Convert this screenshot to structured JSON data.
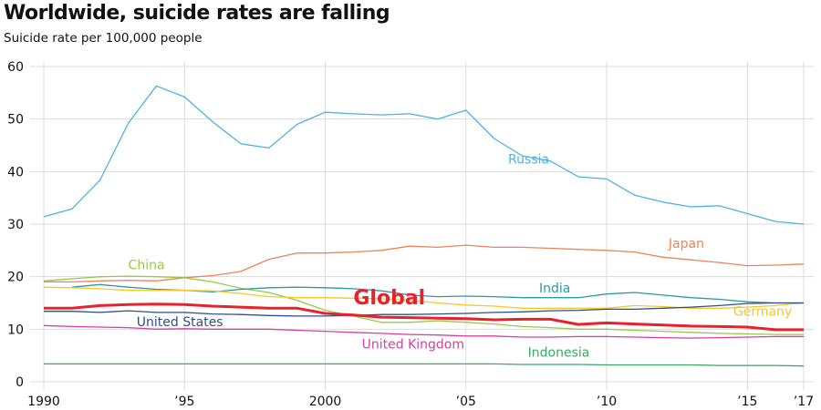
{
  "chart_data": {
    "type": "line",
    "title": "Worldwide, suicide rates are falling",
    "subtitle": "Suicide rate per 100,000 people",
    "xlabel": "",
    "ylabel": "",
    "x": [
      1990,
      1991,
      1992,
      1993,
      1994,
      1995,
      1996,
      1997,
      1998,
      1999,
      2000,
      2001,
      2002,
      2003,
      2004,
      2005,
      2006,
      2007,
      2008,
      2009,
      2010,
      2011,
      2012,
      2013,
      2014,
      2015,
      2016,
      2017
    ],
    "xlim": [
      1990,
      2017
    ],
    "ylim": [
      0,
      60
    ],
    "grid": true,
    "legend": "inline labels",
    "x_ticks": [
      {
        "value": 1990,
        "label": "1990"
      },
      {
        "value": 1995,
        "label": "’95"
      },
      {
        "value": 2000,
        "label": "2000"
      },
      {
        "value": 2005,
        "label": "’05"
      },
      {
        "value": 2010,
        "label": "’10"
      },
      {
        "value": 2015,
        "label": "’15"
      },
      {
        "value": 2017,
        "label": "’17"
      }
    ],
    "y_ticks": [
      {
        "value": 0,
        "label": "0"
      },
      {
        "value": 10,
        "label": "10"
      },
      {
        "value": 20,
        "label": "20"
      },
      {
        "value": 30,
        "label": "30"
      },
      {
        "value": 40,
        "label": "40"
      },
      {
        "value": 50,
        "label": "50"
      },
      {
        "value": 60,
        "label": "60"
      }
    ],
    "series": [
      {
        "name": "Russia",
        "color": "#4fb3e0",
        "emphasis": false,
        "values": [
          31.4,
          32.9,
          38.4,
          49.2,
          56.3,
          54.2,
          49.5,
          45.3,
          44.5,
          49.0,
          51.3,
          51.0,
          50.8,
          51.0,
          50.0,
          51.7,
          46.3,
          43.0,
          42.0,
          39.0,
          38.6,
          35.5,
          34.2,
          33.3,
          33.5,
          32.0,
          30.5,
          30.0
        ],
        "label_at": [
          2006.5,
          41.5
        ]
      },
      {
        "name": "Japan",
        "color": "#e8865a",
        "emphasis": false,
        "values": [
          19.0,
          19.0,
          19.2,
          19.3,
          19.2,
          19.8,
          20.2,
          21.0,
          23.3,
          24.5,
          24.5,
          24.7,
          25.0,
          25.8,
          25.6,
          26.0,
          25.6,
          25.6,
          25.4,
          25.2,
          25.0,
          24.7,
          23.7,
          23.2,
          22.7,
          22.1,
          22.2,
          22.4
        ],
        "label_at": [
          2012.2,
          25.5
        ]
      },
      {
        "name": "China",
        "color": "#96c94a",
        "emphasis": false,
        "values": [
          19.2,
          19.6,
          20.0,
          20.1,
          20.0,
          19.8,
          19.0,
          17.8,
          17.0,
          15.5,
          13.6,
          12.5,
          11.3,
          11.3,
          11.6,
          11.3,
          11.0,
          10.5,
          10.3,
          10.0,
          10.0,
          9.8,
          9.6,
          9.4,
          9.2,
          9.1,
          9.0,
          9.0
        ],
        "label_at": [
          1993.0,
          21.4
        ]
      },
      {
        "name": "India",
        "color": "#2a9aa5",
        "emphasis": false,
        "values": [
          null,
          18.0,
          18.5,
          18.0,
          17.6,
          17.4,
          17.1,
          17.6,
          17.9,
          18.0,
          17.9,
          17.7,
          17.3,
          16.5,
          16.2,
          16.3,
          16.2,
          16.0,
          16.0,
          16.0,
          16.7,
          17.0,
          16.5,
          16.0,
          15.7,
          15.2,
          15.0,
          15.0
        ],
        "label_at": [
          2007.6,
          17.0
        ]
      },
      {
        "name": "Germany",
        "color": "#f7c72a",
        "emphasis": false,
        "values": [
          18.0,
          17.9,
          17.7,
          17.4,
          17.4,
          17.4,
          17.3,
          16.8,
          16.2,
          16.0,
          16.0,
          15.9,
          15.8,
          15.5,
          15.0,
          14.6,
          14.4,
          14.0,
          14.0,
          14.0,
          14.0,
          14.5,
          14.3,
          14.0,
          14.0,
          14.2,
          14.5,
          15.0
        ],
        "label_at": [
          2014.5,
          12.6
        ]
      },
      {
        "name": "Global",
        "color": "#e8222c",
        "emphasis": true,
        "values": [
          14.0,
          14.0,
          14.5,
          14.7,
          14.8,
          14.7,
          14.4,
          14.2,
          14.0,
          14.0,
          13.0,
          12.7,
          12.3,
          12.2,
          12.1,
          12.0,
          11.8,
          11.9,
          11.9,
          10.9,
          11.2,
          11.0,
          10.8,
          10.6,
          10.5,
          10.4,
          9.9,
          9.9
        ],
        "label_at": [
          2001.0,
          14.7
        ]
      },
      {
        "name": "United States",
        "color": "#2f4f86",
        "emphasis": false,
        "values": [
          13.4,
          13.4,
          13.2,
          13.5,
          13.2,
          13.2,
          12.9,
          12.8,
          12.6,
          12.5,
          12.5,
          12.6,
          12.8,
          12.8,
          12.9,
          13.0,
          13.2,
          13.3,
          13.5,
          13.6,
          13.8,
          13.8,
          14.0,
          14.2,
          14.5,
          14.9,
          15.0,
          15.0
        ],
        "label_at": [
          1993.3,
          10.6
        ]
      },
      {
        "name": "United Kingdom",
        "color": "#d63ea6",
        "emphasis": false,
        "values": [
          10.7,
          10.5,
          10.4,
          10.3,
          10.0,
          10.1,
          10.0,
          10.0,
          10.0,
          9.8,
          9.6,
          9.4,
          9.2,
          9.0,
          8.9,
          8.7,
          8.7,
          8.5,
          8.5,
          8.6,
          8.6,
          8.5,
          8.4,
          8.3,
          8.4,
          8.5,
          8.6,
          8.6
        ],
        "label_at": [
          2001.3,
          6.3
        ]
      },
      {
        "name": "Indonesia",
        "color": "#3aa867",
        "emphasis": false,
        "values": [
          3.4,
          3.4,
          3.4,
          3.4,
          3.4,
          3.4,
          3.4,
          3.4,
          3.4,
          3.4,
          3.4,
          3.4,
          3.4,
          3.4,
          3.4,
          3.4,
          3.4,
          3.3,
          3.3,
          3.3,
          3.2,
          3.2,
          3.2,
          3.2,
          3.1,
          3.1,
          3.1,
          3.0
        ],
        "label_at": [
          2007.2,
          4.8
        ]
      }
    ]
  }
}
